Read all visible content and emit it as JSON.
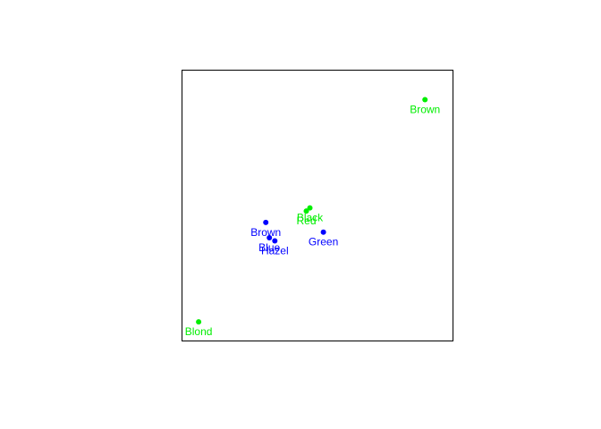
{
  "chart_data": {
    "type": "scatter",
    "title": "",
    "xlabel": "",
    "ylabel": "",
    "xlim": [
      -0.57,
      0.93
    ],
    "ylim": [
      -0.64,
      1.09
    ],
    "grid": false,
    "legend": "none",
    "series": [
      {
        "color": "#00ee00",
        "points": [
          {
            "label": "Black",
            "x": 0.138,
            "y": 0.21
          },
          {
            "label": "Brown",
            "x": 0.777,
            "y": 0.904
          },
          {
            "label": "Red",
            "x": 0.118,
            "y": 0.19
          },
          {
            "label": "Blond",
            "x": -0.48,
            "y": -0.52
          }
        ]
      },
      {
        "color": "#0000ff",
        "points": [
          {
            "label": "Brown",
            "x": -0.107,
            "y": 0.117
          },
          {
            "label": "Blue",
            "x": -0.087,
            "y": 0.019
          },
          {
            "label": "Hazel",
            "x": -0.057,
            "y": -0.001
          },
          {
            "label": "Green",
            "x": 0.213,
            "y": 0.055
          }
        ]
      }
    ]
  }
}
